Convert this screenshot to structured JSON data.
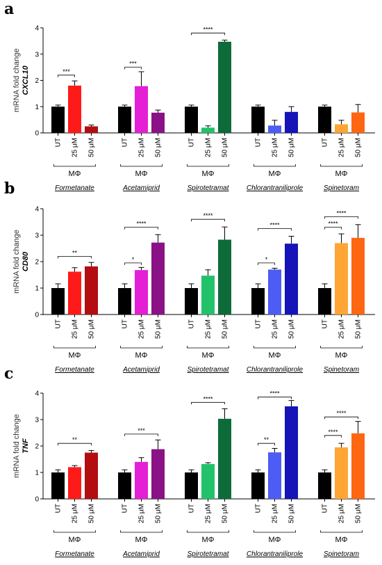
{
  "colors": {
    "ut": "#000000",
    "formetanate": [
      "#ff1a1a",
      "#b30d12"
    ],
    "acetamiprid": [
      "#e41fd6",
      "#8a1286"
    ],
    "spirotetramat": [
      "#22c26a",
      "#0d6b3a"
    ],
    "chlorantraniliprole": [
      "#4d5cf5",
      "#1414b8"
    ],
    "spinetoram": [
      "#ffa534",
      "#ff6612"
    ]
  },
  "panels": [
    {
      "letter": "a",
      "ylabel": "mRNA fold change",
      "gene": "CXCL10",
      "chart_data": {
        "type": "bar",
        "ylim": [
          0,
          4
        ],
        "yticks": [
          "0",
          "1",
          "2",
          "3",
          "4"
        ],
        "categories": [
          "UT",
          "25 μM",
          "50 μM"
        ],
        "group_label": "MΦ",
        "groups": [
          {
            "name": "Formetanate",
            "color_key": "formetanate",
            "values": [
              1.0,
              1.8,
              0.25
            ],
            "errors": [
              0.06,
              0.18,
              0.05
            ],
            "sig": [
              {
                "from": 0,
                "to": 1,
                "label": "***",
                "y": 2.2
              }
            ]
          },
          {
            "name": "Acetamiprid",
            "color_key": "acetamiprid",
            "values": [
              1.0,
              1.78,
              0.77
            ],
            "errors": [
              0.06,
              0.55,
              0.1
            ],
            "sig": [
              {
                "from": 0,
                "to": 1,
                "label": "***",
                "y": 2.5
              }
            ]
          },
          {
            "name": "Spirotetramat",
            "color_key": "spirotetramat",
            "values": [
              1.0,
              0.2,
              3.47
            ],
            "errors": [
              0.06,
              0.07,
              0.06
            ],
            "sig": [
              {
                "from": 0,
                "to": 2,
                "label": "****",
                "y": 3.8
              }
            ]
          },
          {
            "name": "Chlorantraniliprole",
            "color_key": "chlorantraniliprole",
            "values": [
              1.0,
              0.28,
              0.8
            ],
            "errors": [
              0.06,
              0.2,
              0.2
            ],
            "sig": []
          },
          {
            "name": "Spinetoram",
            "color_key": "spinetoram",
            "values": [
              1.0,
              0.33,
              0.78
            ],
            "errors": [
              0.06,
              0.15,
              0.3
            ],
            "sig": []
          }
        ]
      }
    },
    {
      "letter": "b",
      "ylabel": "mRNA fold change",
      "gene": "CD80",
      "chart_data": {
        "type": "bar",
        "ylim": [
          0,
          4
        ],
        "yticks": [
          "0",
          "1",
          "2",
          "3",
          "4"
        ],
        "categories": [
          "UT",
          "25 μM",
          "50 μM"
        ],
        "group_label": "MΦ",
        "groups": [
          {
            "name": "Formetanate",
            "color_key": "formetanate",
            "values": [
              1.0,
              1.62,
              1.82
            ],
            "errors": [
              0.16,
              0.15,
              0.15
            ],
            "sig": [
              {
                "from": 0,
                "to": 2,
                "label": "**",
                "y": 2.2
              }
            ]
          },
          {
            "name": "Acetamiprid",
            "color_key": "acetamiprid",
            "values": [
              1.0,
              1.68,
              2.72
            ],
            "errors": [
              0.16,
              0.1,
              0.3
            ],
            "sig": [
              {
                "from": 0,
                "to": 1,
                "label": "*",
                "y": 1.95
              },
              {
                "from": 0,
                "to": 2,
                "label": "****",
                "y": 3.3
              }
            ]
          },
          {
            "name": "Spirotetramat",
            "color_key": "spirotetramat",
            "values": [
              1.0,
              1.47,
              2.83
            ],
            "errors": [
              0.16,
              0.22,
              0.48
            ],
            "sig": [
              {
                "from": 0,
                "to": 2,
                "label": "****",
                "y": 3.6
              }
            ]
          },
          {
            "name": "Chlorantraniliprole",
            "color_key": "chlorantraniliprole",
            "values": [
              1.0,
              1.7,
              2.68
            ],
            "errors": [
              0.16,
              0.05,
              0.28
            ],
            "sig": [
              {
                "from": 0,
                "to": 1,
                "label": "*",
                "y": 1.95
              },
              {
                "from": 0,
                "to": 2,
                "label": "****",
                "y": 3.25
              }
            ]
          },
          {
            "name": "Spinetoram",
            "color_key": "spinetoram",
            "values": [
              1.0,
              2.7,
              2.9
            ],
            "errors": [
              0.16,
              0.35,
              0.5
            ],
            "sig": [
              {
                "from": 0,
                "to": 1,
                "label": "****",
                "y": 3.3
              },
              {
                "from": 0,
                "to": 2,
                "label": "****",
                "y": 3.7
              }
            ]
          }
        ]
      }
    },
    {
      "letter": "c",
      "ylabel": "mRNA fold change",
      "gene": "TNF",
      "chart_data": {
        "type": "bar",
        "ylim": [
          0,
          4
        ],
        "yticks": [
          "0",
          "1",
          "2",
          "3",
          "4"
        ],
        "categories": [
          "UT",
          "25 μM",
          "50 μM"
        ],
        "group_label": "MΦ",
        "groups": [
          {
            "name": "Formetanate",
            "color_key": "formetanate",
            "values": [
              1.0,
              1.2,
              1.75
            ],
            "errors": [
              0.1,
              0.06,
              0.08
            ],
            "sig": [
              {
                "from": 0,
                "to": 2,
                "label": "**",
                "y": 2.1
              }
            ]
          },
          {
            "name": "Acetamiprid",
            "color_key": "acetamiprid",
            "values": [
              1.0,
              1.4,
              1.88
            ],
            "errors": [
              0.1,
              0.16,
              0.35
            ],
            "sig": [
              {
                "from": 0,
                "to": 2,
                "label": "***",
                "y": 2.45
              }
            ]
          },
          {
            "name": "Spirotetramat",
            "color_key": "spirotetramat",
            "values": [
              1.0,
              1.32,
              3.03
            ],
            "errors": [
              0.1,
              0.05,
              0.38
            ],
            "sig": [
              {
                "from": 0,
                "to": 2,
                "label": "****",
                "y": 3.65
              }
            ]
          },
          {
            "name": "Chlorantraniliprole",
            "color_key": "chlorantraniliprole",
            "values": [
              1.0,
              1.76,
              3.5
            ],
            "errors": [
              0.1,
              0.15,
              0.22
            ],
            "sig": [
              {
                "from": 0,
                "to": 1,
                "label": "**",
                "y": 2.1
              },
              {
                "from": 0,
                "to": 2,
                "label": "****",
                "y": 3.85
              }
            ]
          },
          {
            "name": "Spinetoram",
            "color_key": "spinetoram",
            "values": [
              1.0,
              1.95,
              2.48
            ],
            "errors": [
              0.1,
              0.15,
              0.45
            ],
            "sig": [
              {
                "from": 0,
                "to": 1,
                "label": "****",
                "y": 2.4
              },
              {
                "from": 0,
                "to": 2,
                "label": "****",
                "y": 3.1
              }
            ]
          }
        ]
      }
    }
  ]
}
